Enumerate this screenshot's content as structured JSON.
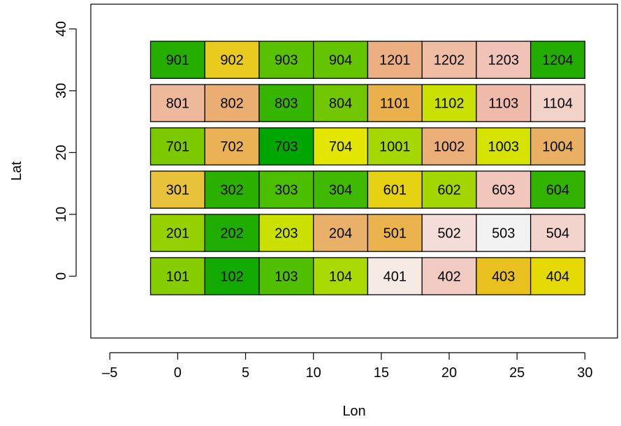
{
  "chart_data": {
    "type": "heatmap",
    "title": "",
    "xlabel": "Lon",
    "ylabel": "Lat",
    "xlim": [
      -6.4,
      32.4
    ],
    "ylim": [
      -10,
      44
    ],
    "xticks": [
      -5,
      0,
      5,
      10,
      15,
      20,
      25,
      30
    ],
    "xtick_labels": [
      "–5",
      "0",
      "5",
      "10",
      "15",
      "20",
      "25",
      "30"
    ],
    "yticks": [
      0,
      10,
      20,
      30,
      40
    ],
    "ytick_labels": [
      "0",
      "10",
      "20",
      "30",
      "40"
    ],
    "grid": false,
    "column_x_ranges": [
      [
        -2,
        2
      ],
      [
        2,
        6
      ],
      [
        6,
        10
      ],
      [
        10,
        14
      ],
      [
        14,
        18
      ],
      [
        18,
        22
      ],
      [
        22,
        26
      ],
      [
        26,
        30
      ]
    ],
    "row_y_ranges": [
      [
        -3,
        3
      ],
      [
        4,
        10
      ],
      [
        11,
        17
      ],
      [
        18,
        24
      ],
      [
        25,
        31
      ],
      [
        32,
        38
      ]
    ],
    "cells": [
      {
        "label": "101",
        "col": 0,
        "row": 0,
        "color": "#85CC00"
      },
      {
        "label": "102",
        "col": 1,
        "row": 0,
        "color": "#12AA00"
      },
      {
        "label": "103",
        "col": 2,
        "row": 0,
        "color": "#50BF00"
      },
      {
        "label": "104",
        "col": 3,
        "row": 0,
        "color": "#A9D900"
      },
      {
        "label": "401",
        "col": 4,
        "row": 0,
        "color": "#F6EAE4"
      },
      {
        "label": "402",
        "col": 5,
        "row": 0,
        "color": "#F1CBC1"
      },
      {
        "label": "403",
        "col": 6,
        "row": 0,
        "color": "#E8C01F"
      },
      {
        "label": "404",
        "col": 7,
        "row": 0,
        "color": "#E5DA06"
      },
      {
        "label": "201",
        "col": 0,
        "row": 1,
        "color": "#95D100"
      },
      {
        "label": "202",
        "col": 1,
        "row": 1,
        "color": "#1EAD00"
      },
      {
        "label": "203",
        "col": 2,
        "row": 1,
        "color": "#CCE000"
      },
      {
        "label": "204",
        "col": 3,
        "row": 1,
        "color": "#E9B06A"
      },
      {
        "label": "501",
        "col": 4,
        "row": 1,
        "color": "#EAB34D"
      },
      {
        "label": "502",
        "col": 5,
        "row": 1,
        "color": "#F4DCD8"
      },
      {
        "label": "503",
        "col": 6,
        "row": 1,
        "color": "#F2F2F2"
      },
      {
        "label": "504",
        "col": 7,
        "row": 1,
        "color": "#F3D4CC"
      },
      {
        "label": "301",
        "col": 0,
        "row": 2,
        "color": "#E8C23A"
      },
      {
        "label": "302",
        "col": 1,
        "row": 2,
        "color": "#2BB000"
      },
      {
        "label": "303",
        "col": 2,
        "row": 2,
        "color": "#4BBE00"
      },
      {
        "label": "304",
        "col": 3,
        "row": 2,
        "color": "#40BA00"
      },
      {
        "label": "601",
        "col": 4,
        "row": 2,
        "color": "#E6D112"
      },
      {
        "label": "602",
        "col": 5,
        "row": 2,
        "color": "#A3D600"
      },
      {
        "label": "603",
        "col": 6,
        "row": 2,
        "color": "#F0C7BA"
      },
      {
        "label": "604",
        "col": 7,
        "row": 2,
        "color": "#32B300"
      },
      {
        "label": "701",
        "col": 0,
        "row": 3,
        "color": "#7CC900"
      },
      {
        "label": "702",
        "col": 1,
        "row": 3,
        "color": "#EAB255"
      },
      {
        "label": "703",
        "col": 2,
        "row": 3,
        "color": "#00A600"
      },
      {
        "label": "704",
        "col": 3,
        "row": 3,
        "color": "#E2E600"
      },
      {
        "label": "1001",
        "col": 4,
        "row": 3,
        "color": "#A6D700"
      },
      {
        "label": "1002",
        "col": 5,
        "row": 3,
        "color": "#EBAE77"
      },
      {
        "label": "1003",
        "col": 6,
        "row": 3,
        "color": "#D6E300"
      },
      {
        "label": "1004",
        "col": 7,
        "row": 3,
        "color": "#E9AF62"
      },
      {
        "label": "801",
        "col": 0,
        "row": 4,
        "color": "#EEB99A"
      },
      {
        "label": "802",
        "col": 1,
        "row": 4,
        "color": "#EBAE72"
      },
      {
        "label": "803",
        "col": 2,
        "row": 4,
        "color": "#36B500"
      },
      {
        "label": "804",
        "col": 3,
        "row": 4,
        "color": "#70C600"
      },
      {
        "label": "1101",
        "col": 4,
        "row": 4,
        "color": "#EAB04C"
      },
      {
        "label": "1102",
        "col": 5,
        "row": 4,
        "color": "#C9E000"
      },
      {
        "label": "1103",
        "col": 6,
        "row": 4,
        "color": "#EFBAAA"
      },
      {
        "label": "1104",
        "col": 7,
        "row": 4,
        "color": "#F3D2C8"
      },
      {
        "label": "901",
        "col": 0,
        "row": 5,
        "color": "#25AE00"
      },
      {
        "label": "902",
        "col": 1,
        "row": 5,
        "color": "#E8CB1E"
      },
      {
        "label": "903",
        "col": 2,
        "row": 5,
        "color": "#5AC100"
      },
      {
        "label": "904",
        "col": 3,
        "row": 5,
        "color": "#65C400"
      },
      {
        "label": "1201",
        "col": 4,
        "row": 5,
        "color": "#ECAF82"
      },
      {
        "label": "1202",
        "col": 5,
        "row": 5,
        "color": "#EFBCA4"
      },
      {
        "label": "1203",
        "col": 6,
        "row": 5,
        "color": "#F1C3B6"
      },
      {
        "label": "1204",
        "col": 7,
        "row": 5,
        "color": "#23AD00"
      }
    ]
  }
}
